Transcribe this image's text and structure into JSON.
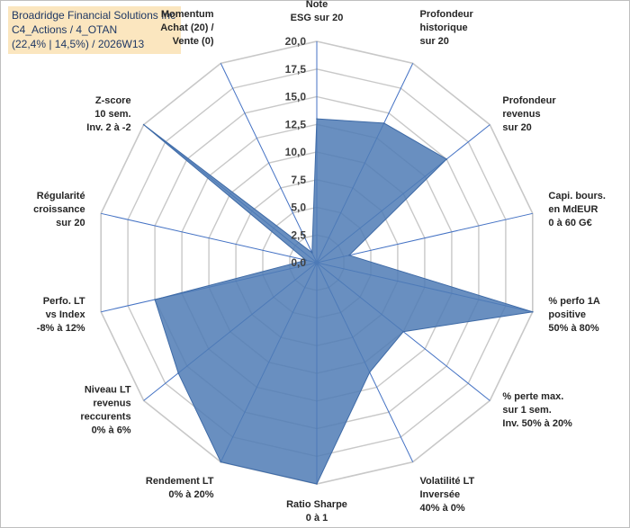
{
  "title_lines": [
    "Broadridge Financial Solutions Inc",
    "C4_Actions / 4_OTAN",
    "(22,4% | 14,5%) / 2026W13"
  ],
  "colors": {
    "fill": "#4f7bb5",
    "stroke": "#3e6aa6",
    "spoke": "#4472c4",
    "grid": "#c8c8c8",
    "title_bg": "#fbe6bf",
    "title_text": "#1f3864"
  },
  "chart_data": {
    "type": "radar",
    "range": [
      0,
      20
    ],
    "tick_step": 2.5,
    "tick_labels": [
      "0,0",
      "2,5",
      "5,0",
      "7,5",
      "10,0",
      "12,5",
      "15,0",
      "17,5",
      "20,0"
    ],
    "axes": [
      {
        "label": [
          "Note",
          "ESG sur 20"
        ],
        "value": 13
      },
      {
        "label": [
          "Profondeur",
          "historique",
          "sur 20"
        ],
        "value": 14
      },
      {
        "label": [
          "Profondeur",
          "revenus",
          "sur 20"
        ],
        "value": 15
      },
      {
        "label": [
          "Capi. bours.",
          "en MdEUR",
          "0 à 60 G€"
        ],
        "value": 3
      },
      {
        "label": [
          "% perfo 1A",
          "positive",
          "50% à 80%"
        ],
        "value": 20
      },
      {
        "label": [
          "% perte max.",
          "sur 1 sem.",
          "Inv. 50% à 20%"
        ],
        "value": 10
      },
      {
        "label": [
          "Volatilité LT",
          "Inversée",
          "40% à 0%"
        ],
        "value": 11
      },
      {
        "label": [
          "Ratio Sharpe",
          "0 à 1"
        ],
        "value": 20
      },
      {
        "label": [
          "Rendement LT",
          "0% à 20%"
        ],
        "value": 20
      },
      {
        "label": [
          "Niveau LT",
          "revenus",
          "reccurents",
          "0% à 6%"
        ],
        "value": 16
      },
      {
        "label": [
          "Perfo. LT",
          "vs Index",
          "-8% à 12%"
        ],
        "value": 15
      },
      {
        "label": [
          "Régularité",
          "croissance",
          "sur 20"
        ],
        "value": 1
      },
      {
        "label": [
          "Z-score",
          "10 sem.",
          "Inv. 2 à -2"
        ],
        "value": 20
      },
      {
        "label": [
          "Momentum",
          "Achat (20) /",
          "Vente (0)"
        ],
        "value": 1
      }
    ]
  }
}
